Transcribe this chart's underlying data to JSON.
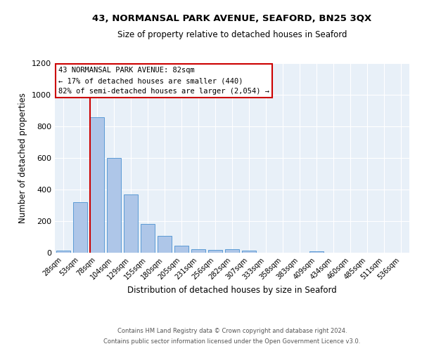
{
  "title1": "43, NORMANSAL PARK AVENUE, SEAFORD, BN25 3QX",
  "title2": "Size of property relative to detached houses in Seaford",
  "xlabel": "Distribution of detached houses by size in Seaford",
  "ylabel": "Number of detached properties",
  "footer1": "Contains HM Land Registry data © Crown copyright and database right 2024.",
  "footer2": "Contains public sector information licensed under the Open Government Licence v3.0.",
  "bar_labels": [
    "28sqm",
    "53sqm",
    "78sqm",
    "104sqm",
    "129sqm",
    "155sqm",
    "180sqm",
    "205sqm",
    "231sqm",
    "256sqm",
    "282sqm",
    "307sqm",
    "333sqm",
    "358sqm",
    "383sqm",
    "409sqm",
    "434sqm",
    "460sqm",
    "485sqm",
    "511sqm",
    "536sqm"
  ],
  "bar_values": [
    15,
    320,
    858,
    598,
    368,
    183,
    107,
    46,
    24,
    16,
    22,
    15,
    0,
    0,
    0,
    10,
    0,
    0,
    0,
    0,
    0
  ],
  "bar_color": "#aec6e8",
  "bar_edgecolor": "#5b9bd5",
  "annotation_title": "43 NORMANSAL PARK AVENUE: 82sqm",
  "annotation_line1": "← 17% of detached houses are smaller (440)",
  "annotation_line2": "82% of semi-detached houses are larger (2,054) →",
  "vline_color": "#cc0000",
  "vline_pos": 1.575,
  "ylim": [
    0,
    1200
  ],
  "yticks": [
    0,
    200,
    400,
    600,
    800,
    1000,
    1200
  ],
  "bg_color": "#e8f0f8"
}
